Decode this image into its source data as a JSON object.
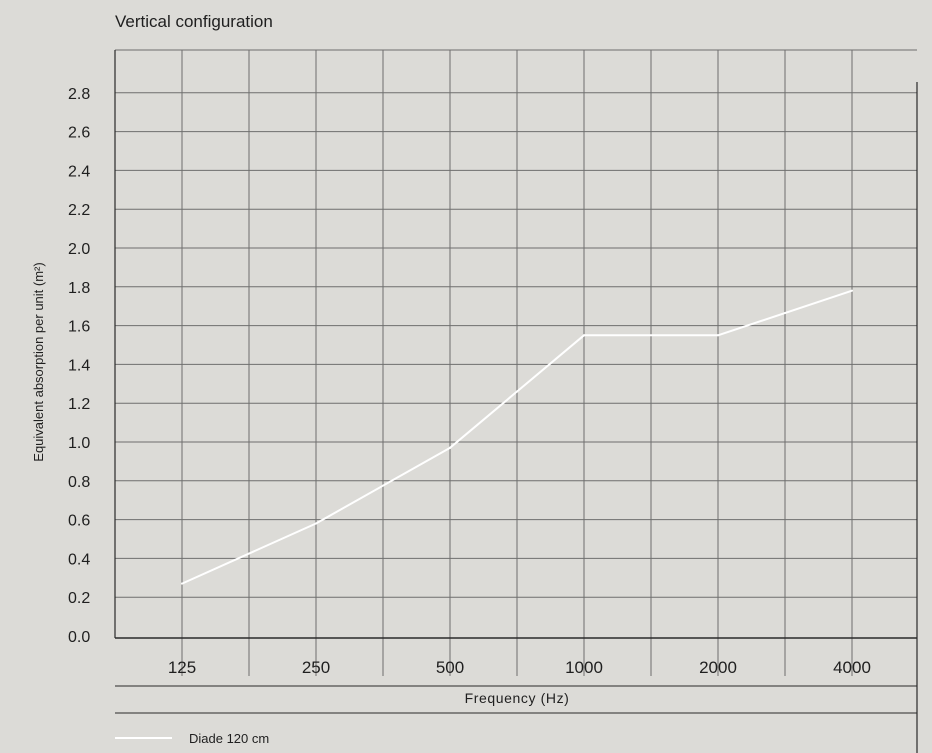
{
  "chart_data": {
    "type": "line",
    "title": "Vertical configuration",
    "xlabel": "Frequency (Hz)",
    "ylabel": "Equivalent absorption per unit (m²)",
    "categories": [
      "125",
      "250",
      "500",
      "1000",
      "2000",
      "4000"
    ],
    "series": [
      {
        "name": "Diade 120 cm",
        "values": [
          0.27,
          0.58,
          0.97,
          1.55,
          1.55,
          1.78
        ],
        "color": "#ffffff"
      }
    ],
    "ylim": [
      0,
      2.8
    ],
    "yticks": [
      "0.0",
      "0.2",
      "0.4",
      "0.6",
      "0.8",
      "1.0",
      "1.2",
      "1.4",
      "1.6",
      "1.8",
      "2.0",
      "2.2",
      "2.4",
      "2.6",
      "2.8"
    ],
    "grid": true,
    "legend_position": "bottom-left"
  },
  "colors": {
    "background": "#dcdbd7",
    "grid": "#6e6e6e",
    "axis": "#2a2a2a",
    "line": "#ffffff"
  }
}
